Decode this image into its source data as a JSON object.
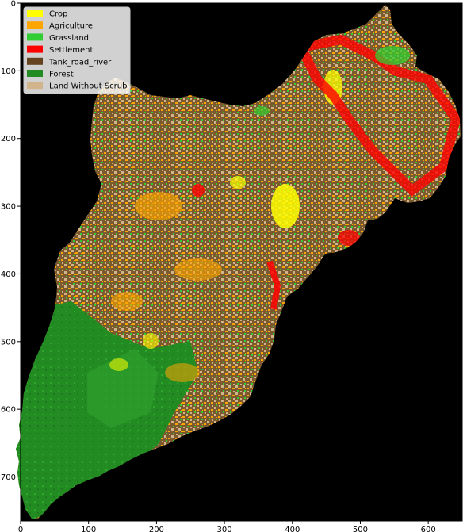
{
  "chart_data": {
    "type": "map",
    "title": "",
    "xlabel": "",
    "ylabel": "",
    "xlim": [
      0,
      650
    ],
    "ylim": [
      765,
      0
    ],
    "x_ticks": [
      "0",
      "100",
      "200",
      "300",
      "400",
      "500",
      "600"
    ],
    "y_ticks": [
      "0",
      "100",
      "200",
      "300",
      "400",
      "500",
      "600",
      "700"
    ],
    "x_tick_values": [
      0,
      100,
      200,
      300,
      400,
      500,
      600
    ],
    "y_tick_values": [
      0,
      100,
      200,
      300,
      400,
      500,
      600,
      700
    ],
    "background_color": "#000000",
    "legend_placement": "top-left",
    "legend": [
      {
        "label": "Crop",
        "color": "#ffff00"
      },
      {
        "label": "Agriculture",
        "color": "#ffa500"
      },
      {
        "label": "Grassland",
        "color": "#32cd32"
      },
      {
        "label": "Settlement",
        "color": "#ff0000"
      },
      {
        "label": "Tank_road_river",
        "color": "#654321"
      },
      {
        "label": "Forest",
        "color": "#228b22"
      },
      {
        "label": "Land Without Scrub",
        "color": "#d2b48c"
      }
    ]
  }
}
